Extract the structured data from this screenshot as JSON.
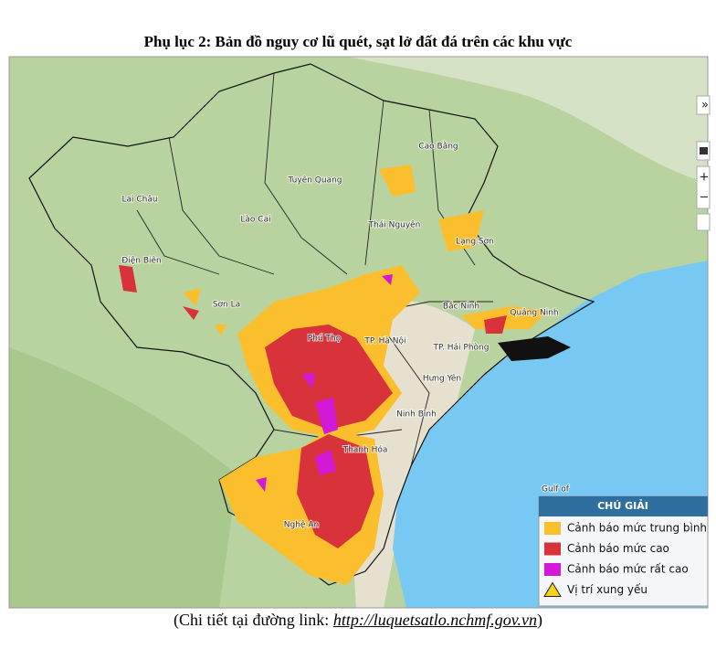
{
  "header": {
    "title": "Phụ lục 2: Bản đồ nguy cơ lũ quét, sạt lở đất đá trên các khu vực"
  },
  "map": {
    "labels": [
      "Cao Bằng",
      "Tuyên Quang",
      "Lai Châu",
      "Lào Cai",
      "Thái Nguyên",
      "Lạng Sơn",
      "Điện Biên",
      "Sơn La",
      "Bắc Ninh",
      "Quảng Ninh",
      "Phú Thọ",
      "TP. Hà Nội",
      "TP. Hải Phòng",
      "Hưng Yên",
      "Ninh Bình",
      "Thanh Hóa",
      "Nghệ An",
      "Gulf of"
    ],
    "controls": [
      "»",
      "+",
      "−"
    ]
  },
  "legend": {
    "title": "CHÚ GIẢI",
    "items": [
      {
        "label": "Cảnh báo mức trung bình",
        "color": "#fbbf2e"
      },
      {
        "label": "Cảnh báo mức cao",
        "color": "#d8323a"
      },
      {
        "label": "Cảnh báo mức rất cao",
        "color": "#d21ad6"
      },
      {
        "label": "Vị trí xung yếu",
        "color": "#f5d21a"
      }
    ]
  },
  "caption": {
    "prefix": "(Chi tiết tại đường link: ",
    "link": "http://luquetsatlo.nchmf.gov.vn",
    "suffix": ")"
  }
}
